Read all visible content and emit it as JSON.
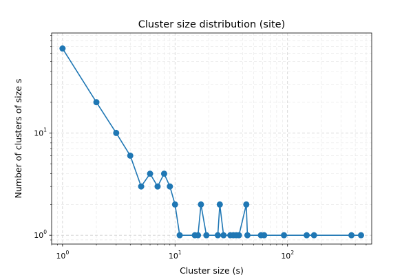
{
  "chart_data": {
    "type": "line",
    "title": "Cluster size distribution (site)",
    "xlabel": "Cluster size (s)",
    "ylabel": "Number of clusters of size s",
    "xscale": "log",
    "yscale": "log",
    "xlim": [
      0.8,
      560
    ],
    "ylim": [
      0.82,
      95
    ],
    "grid": true,
    "legend": "none",
    "color": "#1f77b4",
    "x_ticks": [
      {
        "value": 1,
        "base": "10",
        "exp": "0"
      },
      {
        "value": 10,
        "base": "10",
        "exp": "1"
      },
      {
        "value": 100,
        "base": "10",
        "exp": "2"
      }
    ],
    "y_ticks": [
      {
        "value": 1,
        "base": "10",
        "exp": "0"
      },
      {
        "value": 10,
        "base": "10",
        "exp": "1"
      }
    ],
    "series": [
      {
        "x": [
          1,
          2,
          3,
          4,
          5,
          6,
          7,
          8,
          9,
          10,
          11,
          15,
          16,
          17,
          19,
          24,
          25,
          27,
          31,
          33,
          35,
          37,
          43,
          44,
          58,
          62,
          93,
          148,
          172,
          370,
          450
        ],
        "y": [
          67,
          20,
          10,
          6,
          3,
          4,
          3,
          4,
          3,
          2,
          1,
          1,
          1,
          2,
          1,
          1,
          2,
          1,
          1,
          1,
          1,
          1,
          2,
          1,
          1,
          1,
          1,
          1,
          1,
          1,
          1
        ]
      }
    ]
  }
}
